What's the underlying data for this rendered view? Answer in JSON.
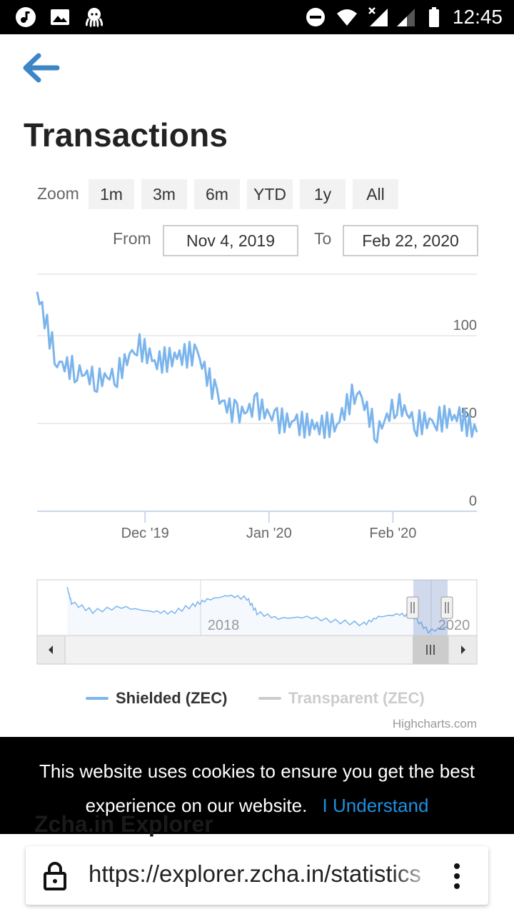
{
  "status_bar": {
    "time": "12:45",
    "left_icons": [
      "music-note-icon",
      "image-icon",
      "octopus-icon"
    ],
    "right_icons": [
      "do-not-disturb-icon",
      "wifi-icon",
      "signal-x-icon",
      "signal-icon",
      "battery-icon"
    ]
  },
  "page": {
    "back_icon": "arrow-left-icon",
    "title": "Transactions"
  },
  "range_selector": {
    "zoom_label": "Zoom",
    "buttons": [
      "1m",
      "3m",
      "6m",
      "YTD",
      "1y",
      "All"
    ],
    "from_label": "From",
    "from_value": "Nov 4, 2019",
    "to_label": "To",
    "to_value": "Feb 22, 2020"
  },
  "chart_data": {
    "type": "line",
    "title": "Transactions",
    "y_ticks": [
      "100",
      "50",
      "0"
    ],
    "ylim": [
      0,
      135
    ],
    "x_ticks": [
      "Dec '19",
      "Jan '20",
      "Feb '20"
    ],
    "x_range": [
      "2019-11-04",
      "2020-02-22"
    ],
    "navigator_labels": [
      "2018",
      "2020"
    ],
    "series": [
      {
        "name": "Shielded (ZEC)",
        "color": "#7cb5ec",
        "visible": true,
        "x": [
          "2019-11-04",
          "2019-11-09",
          "2019-11-14",
          "2019-11-19",
          "2019-11-24",
          "2019-11-29",
          "2019-12-04",
          "2019-12-09",
          "2019-12-14",
          "2019-12-19",
          "2019-12-24",
          "2019-12-29",
          "2020-01-03",
          "2020-01-08",
          "2020-01-13",
          "2020-01-18",
          "2020-01-23",
          "2020-01-28",
          "2020-02-02",
          "2020-02-07",
          "2020-02-12",
          "2020-02-17",
          "2020-02-22"
        ],
        "values": [
          125,
          85,
          80,
          75,
          78,
          95,
          85,
          88,
          90,
          65,
          55,
          60,
          52,
          50,
          48,
          50,
          70,
          45,
          62,
          50,
          52,
          55,
          45
        ]
      },
      {
        "name": "Transparent (ZEC)",
        "color": "#cccccc",
        "visible": false,
        "values": []
      }
    ],
    "grid": true,
    "legend_position": "bottom-center"
  },
  "credits": "Highcharts.com",
  "cookie_banner": {
    "message": "This website uses cookies to ensure you get the best experience on our website.",
    "accept": "I Understand",
    "behind_text": "Zcha.in Explorer"
  },
  "browser": {
    "url": "https://explorer.zcha.in/statistics",
    "lock_icon": "lock-icon",
    "menu_icon": "more-vert-icon"
  }
}
